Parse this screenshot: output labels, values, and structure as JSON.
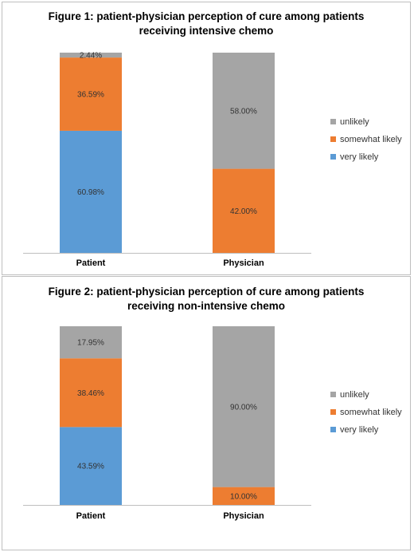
{
  "chart_data": [
    {
      "type": "bar",
      "stacked": true,
      "title": [
        "Figure 1: patient-physician perception of cure among patients",
        "receiving intensive chemo"
      ],
      "categories": [
        "Patient",
        "Physician"
      ],
      "series": [
        {
          "name": "very likely",
          "color": "#5b9bd5",
          "values": [
            60.98,
            0
          ],
          "labels": [
            "60.98%",
            ""
          ]
        },
        {
          "name": "somewhat likely",
          "color": "#ed7d31",
          "values": [
            36.59,
            42.0
          ],
          "labels": [
            "36.59%",
            "42.00%"
          ]
        },
        {
          "name": "unlikely",
          "color": "#a5a5a5",
          "values": [
            2.44,
            58.0
          ],
          "labels": [
            "2.44%",
            "58.00%"
          ]
        }
      ],
      "ylim": [
        0,
        100
      ],
      "legend_position": "right",
      "grid": false
    },
    {
      "type": "bar",
      "stacked": true,
      "title": [
        "Figure 2: patient-physician perception of cure among patients",
        "receiving non-intensive chemo"
      ],
      "categories": [
        "Patient",
        "Physician"
      ],
      "series": [
        {
          "name": "very likely",
          "color": "#5b9bd5",
          "values": [
            43.59,
            0
          ],
          "labels": [
            "43.59%",
            ""
          ]
        },
        {
          "name": "somewhat likely",
          "color": "#ed7d31",
          "values": [
            38.46,
            10.0
          ],
          "labels": [
            "38.46%",
            "10.00%"
          ]
        },
        {
          "name": "unlikely",
          "color": "#a5a5a5",
          "values": [
            17.95,
            90.0
          ],
          "labels": [
            "17.95%",
            "90.00%"
          ]
        }
      ],
      "ylim": [
        0,
        100
      ],
      "legend_position": "right",
      "grid": false
    }
  ]
}
